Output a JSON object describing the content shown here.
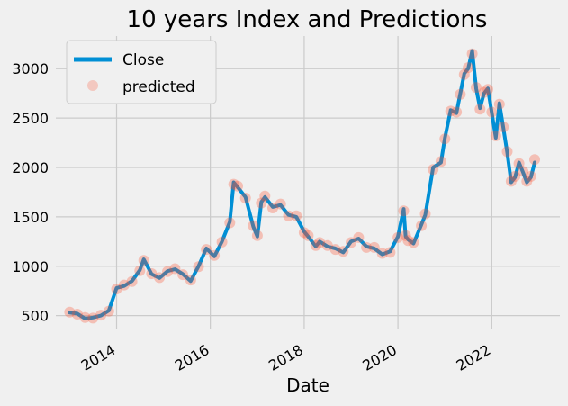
{
  "chart_data": {
    "type": "line",
    "title": "10 years Index and Predictions",
    "xlabel": "Date",
    "ylabel": "",
    "x_range": [
      "2012-09-15",
      "2023-06-15"
    ],
    "ylim": [
      360,
      3330
    ],
    "x_ticks": [
      "2014",
      "2016",
      "2018",
      "2020",
      "2022"
    ],
    "y_ticks": [
      500,
      1000,
      1500,
      2000,
      2500,
      3000
    ],
    "grid": true,
    "legend_position": "top-left",
    "legend": [
      "Close",
      "predicted"
    ],
    "colors": {
      "close": "#008fd5",
      "predicted": "#fc4f30",
      "background": "#f0f0f0",
      "grid": "#cbcbcb"
    },
    "series": [
      {
        "name": "Close",
        "style": "line",
        "x": [
          "2013-01-01",
          "2013-03-01",
          "2013-05-01",
          "2013-07-01",
          "2013-09-01",
          "2013-11-01",
          "2014-01-01",
          "2014-03-01",
          "2014-05-01",
          "2014-07-01",
          "2014-08-01",
          "2014-10-01",
          "2014-12-01",
          "2015-02-01",
          "2015-04-01",
          "2015-06-01",
          "2015-08-01",
          "2015-10-01",
          "2015-12-01",
          "2016-02-01",
          "2016-04-01",
          "2016-06-01",
          "2016-07-01",
          "2016-08-01",
          "2016-10-01",
          "2016-12-01",
          "2017-01-01",
          "2017-02-01",
          "2017-03-01",
          "2017-05-01",
          "2017-07-01",
          "2017-09-01",
          "2017-11-01",
          "2018-01-01",
          "2018-02-01",
          "2018-04-01",
          "2018-05-01",
          "2018-07-01",
          "2018-09-01",
          "2018-11-01",
          "2019-01-01",
          "2019-03-01",
          "2019-05-01",
          "2019-07-01",
          "2019-09-01",
          "2019-11-01",
          "2020-01-01",
          "2020-02-15",
          "2020-03-01",
          "2020-03-20",
          "2020-05-01",
          "2020-07-01",
          "2020-08-01",
          "2020-10-01",
          "2020-12-01",
          "2021-01-01",
          "2021-02-15",
          "2021-04-01",
          "2021-05-01",
          "2021-06-01",
          "2021-07-01",
          "2021-08-01",
          "2021-09-01",
          "2021-10-01",
          "2021-11-01",
          "2021-12-01",
          "2022-01-01",
          "2022-02-01",
          "2022-03-01",
          "2022-04-01",
          "2022-05-01",
          "2022-06-01",
          "2022-07-01",
          "2022-08-01",
          "2022-09-01",
          "2022-10-01",
          "2022-11-01",
          "2022-12-01"
        ],
        "y": [
          530,
          520,
          470,
          480,
          500,
          550,
          780,
          800,
          850,
          960,
          1070,
          920,
          880,
          950,
          970,
          920,
          850,
          1000,
          1180,
          1100,
          1250,
          1450,
          1850,
          1800,
          1700,
          1400,
          1300,
          1650,
          1700,
          1600,
          1620,
          1520,
          1500,
          1350,
          1300,
          1200,
          1250,
          1200,
          1180,
          1140,
          1250,
          1280,
          1200,
          1180,
          1120,
          1150,
          1300,
          1580,
          1300,
          1270,
          1230,
          1420,
          1520,
          2000,
          2050,
          2300,
          2580,
          2550,
          2750,
          2950,
          3000,
          3180,
          2800,
          2600,
          2750,
          2800,
          2550,
          2300,
          2650,
          2400,
          2150,
          1850,
          1900,
          2050,
          1950,
          1850,
          1900,
          2050
        ]
      },
      {
        "name": "predicted",
        "style": "markers",
        "x": [
          "2013-01-01",
          "2013-03-01",
          "2013-05-01",
          "2013-07-01",
          "2013-09-01",
          "2013-11-01",
          "2014-01-01",
          "2014-03-01",
          "2014-05-01",
          "2014-07-01",
          "2014-08-01",
          "2014-10-01",
          "2014-12-01",
          "2015-02-01",
          "2015-04-01",
          "2015-06-01",
          "2015-08-01",
          "2015-10-01",
          "2015-12-01",
          "2016-02-01",
          "2016-04-01",
          "2016-06-01",
          "2016-07-01",
          "2016-08-01",
          "2016-10-01",
          "2016-12-01",
          "2017-01-01",
          "2017-02-01",
          "2017-03-01",
          "2017-05-01",
          "2017-07-01",
          "2017-09-01",
          "2017-11-01",
          "2018-01-01",
          "2018-02-01",
          "2018-04-01",
          "2018-05-01",
          "2018-07-01",
          "2018-09-01",
          "2018-11-01",
          "2019-01-01",
          "2019-03-01",
          "2019-05-01",
          "2019-07-01",
          "2019-09-01",
          "2019-11-01",
          "2020-01-01",
          "2020-02-15",
          "2020-03-01",
          "2020-03-20",
          "2020-05-01",
          "2020-07-01",
          "2020-08-01",
          "2020-10-01",
          "2020-12-01",
          "2021-01-01",
          "2021-02-15",
          "2021-04-01",
          "2021-05-01",
          "2021-06-01",
          "2021-07-01",
          "2021-08-01",
          "2021-09-01",
          "2021-10-01",
          "2021-11-01",
          "2021-12-01",
          "2022-01-01",
          "2022-02-01",
          "2022-03-01",
          "2022-04-01",
          "2022-05-01",
          "2022-06-01",
          "2022-07-01",
          "2022-08-01",
          "2022-09-01",
          "2022-10-01",
          "2022-11-01",
          "2022-12-01"
        ],
        "y": [
          535,
          515,
          480,
          475,
          505,
          545,
          770,
          810,
          845,
          955,
          1060,
          925,
          885,
          945,
          975,
          915,
          860,
          995,
          1170,
          1110,
          1245,
          1440,
          1830,
          1810,
          1690,
          1410,
          1310,
          1640,
          1710,
          1590,
          1630,
          1510,
          1510,
          1340,
          1310,
          1210,
          1240,
          1210,
          1170,
          1150,
          1240,
          1290,
          1190,
          1190,
          1130,
          1140,
          1290,
          1560,
          1310,
          1260,
          1240,
          1410,
          1530,
          1980,
          2060,
          2290,
          2570,
          2560,
          2740,
          2940,
          3010,
          3150,
          2810,
          2590,
          2760,
          2790,
          2560,
          2320,
          2640,
          2410,
          2160,
          1860,
          1910,
          2040,
          1960,
          1860,
          1910,
          2080
        ]
      }
    ]
  }
}
